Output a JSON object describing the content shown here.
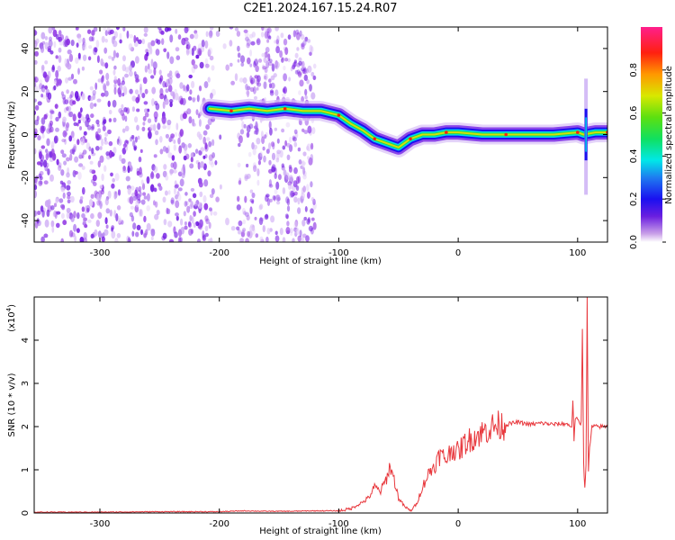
{
  "title": "C2E1.2024.167.15.24.R07",
  "colorbar": {
    "label": "Normalized spectral amplitude",
    "ticks": [
      "0.0",
      "0.2",
      "0.4",
      "0.6",
      "0.8"
    ],
    "tick_values": [
      0.0,
      0.2,
      0.4,
      0.6,
      0.8
    ],
    "range": [
      0,
      1
    ]
  },
  "chart_data": [
    {
      "type": "heatmap",
      "xlabel": "Height of straight line (km)",
      "ylabel": "Frequency (Hz)",
      "xlim": [
        -355,
        125
      ],
      "ylim": [
        -50,
        50
      ],
      "x_ticks": [
        -300,
        -200,
        -100,
        0,
        100
      ],
      "x_tick_labels": [
        "-300",
        "-200",
        "-100",
        "0",
        "100"
      ],
      "y_ticks": [
        -40,
        -20,
        0,
        20,
        40
      ],
      "y_tick_labels": [
        "-40",
        "-20",
        "0",
        "20",
        "40"
      ],
      "noise_region_x": [
        -355,
        -120
      ],
      "signal_trace": {
        "x": [
          -208,
          -190,
          -175,
          -160,
          -145,
          -130,
          -115,
          -100,
          -90,
          -80,
          -70,
          -60,
          -50,
          -40,
          -30,
          -20,
          -10,
          0,
          20,
          40,
          60,
          80,
          100,
          105,
          115,
          125
        ],
        "y": [
          12,
          11,
          12,
          11,
          12,
          11,
          11,
          9,
          5,
          2,
          -2,
          -4,
          -6,
          -2,
          0,
          0,
          1,
          1,
          0,
          0,
          0,
          0,
          1,
          0,
          1,
          1
        ]
      },
      "spike": {
        "x": 107,
        "y_range": [
          -12,
          12
        ]
      }
    },
    {
      "type": "line",
      "xlabel": "Height of straight line (km)",
      "ylabel": "SNR (10 * v/v)",
      "scale_label": "(x10",
      "scale_exponent": "4",
      "scale_close": ")",
      "xlim": [
        -355,
        125
      ],
      "ylim": [
        0,
        5
      ],
      "x_ticks": [
        -300,
        -200,
        -100,
        0,
        100
      ],
      "x_tick_labels": [
        "-300",
        "-200",
        "-100",
        "0",
        "100"
      ],
      "y_ticks": [
        0,
        1,
        2,
        3,
        4
      ],
      "y_tick_labels": [
        "0",
        "1",
        "2",
        "3",
        "4"
      ],
      "series": [
        {
          "color": "#e8383d",
          "x": [
            -355,
            -300,
            -250,
            -200,
            -180,
            -160,
            -140,
            -120,
            -100,
            -90,
            -80,
            -75,
            -70,
            -65,
            -60,
            -57,
            -55,
            -53,
            -50,
            -45,
            -40,
            -35,
            -30,
            -25,
            -20,
            -15,
            -10,
            -5,
            0,
            5,
            10,
            15,
            20,
            25,
            30,
            40,
            50,
            60,
            70,
            80,
            90,
            95,
            96,
            97,
            98,
            100,
            102,
            103,
            104,
            105,
            106,
            107,
            108,
            109,
            110,
            112,
            115,
            120,
            125
          ],
          "y": [
            0.02,
            0.02,
            0.03,
            0.03,
            0.05,
            0.04,
            0.04,
            0.05,
            0.05,
            0.1,
            0.25,
            0.35,
            0.6,
            0.5,
            0.8,
            1.1,
            0.9,
            0.7,
            0.35,
            0.15,
            0.05,
            0.2,
            0.6,
            0.9,
            1.1,
            1.35,
            1.25,
            1.5,
            1.4,
            1.6,
            1.7,
            1.8,
            1.85,
            1.95,
            2.0,
            2.05,
            2.1,
            2.05,
            2.08,
            2.05,
            2.07,
            2.0,
            2.6,
            1.7,
            2.2,
            2.15,
            2.05,
            2.1,
            4.3,
            1.2,
            0.55,
            1.1,
            4.95,
            0.95,
            1.5,
            2.0,
            2.0,
            2.0,
            2.0
          ]
        }
      ]
    }
  ]
}
